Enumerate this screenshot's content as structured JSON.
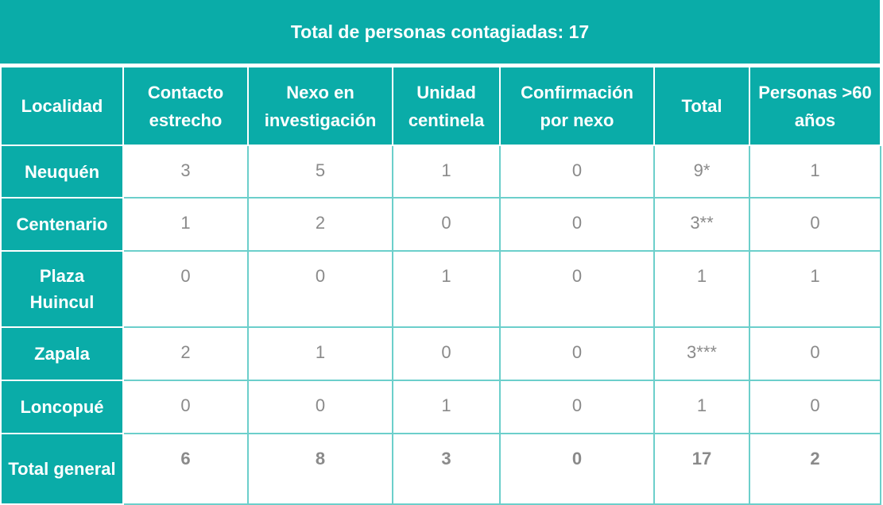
{
  "header": {
    "title": "Total de personas contagiadas: 17"
  },
  "table": {
    "columns": [
      "Localidad",
      "Contacto estrecho",
      "Nexo en investigación",
      "Unidad centinela",
      "Confirmación por nexo",
      "Total",
      "Personas >60 años"
    ],
    "rows": [
      [
        "Neuquén",
        "3",
        "5",
        "1",
        "0",
        "9*",
        "1"
      ],
      [
        "Centenario",
        "1",
        "2",
        "0",
        "0",
        "3**",
        "0"
      ],
      [
        "Plaza Huincul",
        "0",
        "0",
        "1",
        "0",
        "1",
        "1"
      ],
      [
        "Zapala",
        "2",
        "1",
        "0",
        "0",
        "3***",
        "0"
      ],
      [
        "Loncopué",
        "0",
        "0",
        "1",
        "0",
        "1",
        "0"
      ],
      [
        "Total general",
        "6",
        "8",
        "3",
        "0",
        "17",
        "2"
      ]
    ]
  }
}
